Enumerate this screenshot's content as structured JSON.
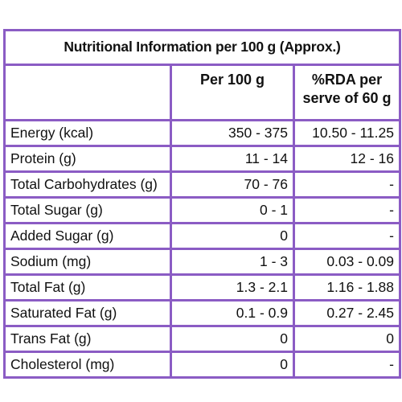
{
  "title": "Nutritional Information per 100 g (Approx.)",
  "columns": {
    "per100": "Per 100 g",
    "rda_line1": "%RDA per",
    "rda_line2": "serve of 60 g"
  },
  "colors": {
    "border": "#8b5cc4"
  },
  "rows": [
    {
      "name": "Energy (kcal)",
      "per100": "350 - 375",
      "rda": "10.50 - 11.25"
    },
    {
      "name": "Protein (g)",
      "per100": "11 - 14",
      "rda": "12 - 16"
    },
    {
      "name": "Total Carbohydrates (g)",
      "per100": "70 - 76",
      "rda": "-"
    },
    {
      "name": "Total Sugar (g)",
      "per100": "0 - 1",
      "rda": "-"
    },
    {
      "name": "Added Sugar (g)",
      "per100": "0",
      "rda": "-"
    },
    {
      "name": "Sodium (mg)",
      "per100": "1 - 3",
      "rda": "0.03 - 0.09"
    },
    {
      "name": "Total Fat (g)",
      "per100": "1.3 - 2.1",
      "rda": "1.16 - 1.88"
    },
    {
      "name": "Saturated Fat (g)",
      "per100": "0.1 - 0.9",
      "rda": "0.27 - 2.45"
    },
    {
      "name": "Trans Fat (g)",
      "per100": "0",
      "rda": "0"
    },
    {
      "name": "Cholesterol (mg)",
      "per100": "0",
      "rda": "-"
    }
  ]
}
